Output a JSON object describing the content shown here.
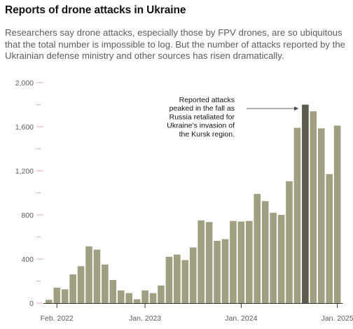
{
  "header": {
    "title": "Reports of drone attacks in Ukraine",
    "subtitle": "Researchers say drone attacks, especially those by FPV drones, are so ubiquitous that the total number is impossible to log. But the number of attacks reported by the Ukrainian defense ministry and other sources has risen dramatically."
  },
  "chart_data": {
    "type": "bar",
    "title": "",
    "xlabel": "",
    "ylabel": "",
    "ylim": [
      0,
      2000
    ],
    "y_ticks": [
      0,
      400,
      800,
      1200,
      1600,
      2000
    ],
    "y_tick_labels": [
      "0",
      "400",
      "800",
      "1,200",
      "1,600",
      "2,000"
    ],
    "grid": false,
    "categories": [
      "Jan. 2022",
      "Feb. 2022",
      "Mar. 2022",
      "Apr. 2022",
      "May 2022",
      "Jun. 2022",
      "Jul. 2022",
      "Aug. 2022",
      "Sep. 2022",
      "Oct. 2022",
      "Nov. 2022",
      "Dec. 2022",
      "Jan. 2023",
      "Feb. 2023",
      "Mar. 2023",
      "Apr. 2023",
      "May 2023",
      "Jun. 2023",
      "Jul. 2023",
      "Aug. 2023",
      "Sep. 2023",
      "Oct. 2023",
      "Nov. 2023",
      "Dec. 2023",
      "Jan. 2024",
      "Feb. 2024",
      "Mar. 2024",
      "Apr. 2024",
      "May 2024",
      "Jun. 2024",
      "Jul. 2024",
      "Aug. 2024",
      "Sep. 2024",
      "Oct. 2024",
      "Nov. 2024",
      "Dec. 2024",
      "Jan. 2025"
    ],
    "values": [
      30,
      140,
      125,
      260,
      335,
      515,
      485,
      350,
      210,
      115,
      90,
      35,
      115,
      90,
      160,
      420,
      440,
      390,
      505,
      750,
      735,
      565,
      580,
      745,
      740,
      745,
      990,
      925,
      820,
      800,
      1105,
      1590,
      1800,
      1740,
      1585,
      1170,
      1610
    ],
    "highlight_index": 32,
    "x_tick_labels": [
      {
        "index": 1,
        "label": "Feb. 2022"
      },
      {
        "index": 12,
        "label": "Jan. 2023"
      },
      {
        "index": 24,
        "label": "Jan. 2024"
      },
      {
        "index": 36,
        "label": "Jan. 2025"
      }
    ],
    "colors": {
      "bar": "#a19f82",
      "highlight": "#5b5a4d"
    },
    "annotation": {
      "text_lines": [
        "Reported attacks",
        "peaked in the fall as",
        "Russia retaliated for",
        "Ukraine’s invasion of",
        "the Kursk region."
      ],
      "target_index": 32
    }
  }
}
